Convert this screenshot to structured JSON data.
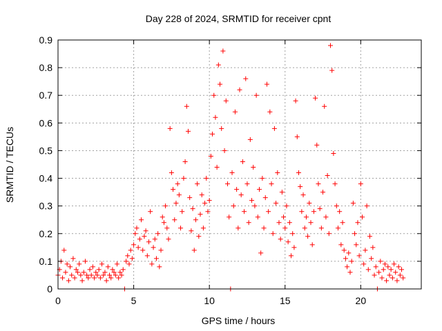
{
  "chart_data": {
    "type": "scatter",
    "title": "Day 228 of 2024, SRMTID for receiver cpnt",
    "xlabel": "GPS time / hours",
    "ylabel": "SRMTID / TECUs",
    "xlim": [
      0,
      24
    ],
    "ylim": [
      0,
      0.9
    ],
    "xticks": [
      0,
      5,
      10,
      15,
      20
    ],
    "xtick_labels": [
      "0",
      "5",
      "10",
      "15",
      "20"
    ],
    "yticks": [
      0,
      0.1,
      0.2,
      0.3,
      0.4,
      0.5,
      0.6,
      0.7,
      0.8,
      0.9
    ],
    "ytick_labels": [
      "0",
      "0.1",
      "0.2",
      "0.3",
      "0.4",
      "0.5",
      "0.6",
      "0.7",
      "0.8",
      "0.9"
    ],
    "grid": true,
    "marker": "plus",
    "color": "#ff0000",
    "series": [
      {
        "name": "SRMTID",
        "points": [
          [
            0.0,
            0.05
          ],
          [
            0.1,
            0.07
          ],
          [
            0.2,
            0.1
          ],
          [
            0.3,
            0.04
          ],
          [
            0.4,
            0.14
          ],
          [
            0.5,
            0.06
          ],
          [
            0.6,
            0.09
          ],
          [
            0.7,
            0.03
          ],
          [
            0.8,
            0.08
          ],
          [
            0.9,
            0.05
          ],
          [
            1.0,
            0.11
          ],
          [
            1.1,
            0.04
          ],
          [
            1.2,
            0.07
          ],
          [
            1.3,
            0.06
          ],
          [
            1.4,
            0.09
          ],
          [
            1.5,
            0.05
          ],
          [
            1.6,
            0.03
          ],
          [
            1.7,
            0.06
          ],
          [
            1.8,
            0.1
          ],
          [
            1.9,
            0.05
          ],
          [
            2.0,
            0.04
          ],
          [
            2.1,
            0.07
          ],
          [
            2.2,
            0.05
          ],
          [
            2.3,
            0.08
          ],
          [
            2.4,
            0.04
          ],
          [
            2.5,
            0.06
          ],
          [
            2.6,
            0.05
          ],
          [
            2.7,
            0.07
          ],
          [
            2.8,
            0.04
          ],
          [
            2.9,
            0.09
          ],
          [
            3.0,
            0.05
          ],
          [
            3.1,
            0.06
          ],
          [
            3.2,
            0.03
          ],
          [
            3.3,
            0.08
          ],
          [
            3.4,
            0.05
          ],
          [
            3.5,
            0.04
          ],
          [
            3.6,
            0.07
          ],
          [
            3.7,
            0.06
          ],
          [
            3.8,
            0.05
          ],
          [
            3.9,
            0.09
          ],
          [
            4.0,
            0.04
          ],
          [
            4.1,
            0.06
          ],
          [
            4.2,
            0.05
          ],
          [
            4.3,
            0.07
          ],
          [
            4.4,
            0.0
          ],
          [
            4.5,
            0.1
          ],
          [
            4.6,
            0.12
          ],
          [
            4.7,
            0.09
          ],
          [
            4.8,
            0.14
          ],
          [
            4.9,
            0.11
          ],
          [
            5.0,
            0.16
          ],
          [
            5.1,
            0.2
          ],
          [
            5.2,
            0.22
          ],
          [
            5.3,
            0.15
          ],
          [
            5.4,
            0.18
          ],
          [
            5.5,
            0.25
          ],
          [
            5.6,
            0.14
          ],
          [
            5.7,
            0.19
          ],
          [
            5.8,
            0.21
          ],
          [
            5.9,
            0.12
          ],
          [
            6.0,
            0.17
          ],
          [
            6.1,
            0.28
          ],
          [
            6.2,
            0.09
          ],
          [
            6.3,
            0.15
          ],
          [
            6.4,
            0.18
          ],
          [
            6.5,
            0.11
          ],
          [
            6.6,
            0.2
          ],
          [
            6.7,
            0.08
          ],
          [
            6.8,
            0.14
          ],
          [
            6.9,
            0.26
          ],
          [
            7.0,
            0.24
          ],
          [
            7.1,
            0.3
          ],
          [
            7.2,
            0.22
          ],
          [
            7.3,
            0.18
          ],
          [
            7.4,
            0.58
          ],
          [
            7.5,
            0.42
          ],
          [
            7.6,
            0.36
          ],
          [
            7.7,
            0.25
          ],
          [
            7.8,
            0.31
          ],
          [
            7.9,
            0.38
          ],
          [
            8.0,
            0.34
          ],
          [
            8.1,
            0.22
          ],
          [
            8.2,
            0.28
          ],
          [
            8.3,
            0.4
          ],
          [
            8.4,
            0.46
          ],
          [
            8.5,
            0.66
          ],
          [
            8.6,
            0.57
          ],
          [
            8.7,
            0.33
          ],
          [
            8.8,
            0.21
          ],
          [
            8.9,
            0.29
          ],
          [
            9.0,
            0.14
          ],
          [
            9.1,
            0.25
          ],
          [
            9.2,
            0.38
          ],
          [
            9.3,
            0.19
          ],
          [
            9.4,
            0.27
          ],
          [
            9.5,
            0.34
          ],
          [
            9.6,
            0.22
          ],
          [
            9.7,
            0.31
          ],
          [
            9.8,
            0.4
          ],
          [
            9.9,
            0.28
          ],
          [
            10.0,
            0.32
          ],
          [
            10.1,
            0.48
          ],
          [
            10.2,
            0.56
          ],
          [
            10.3,
            0.7
          ],
          [
            10.4,
            0.62
          ],
          [
            10.5,
            0.44
          ],
          [
            10.6,
            0.81
          ],
          [
            10.7,
            0.74
          ],
          [
            10.8,
            0.58
          ],
          [
            10.9,
            0.86
          ],
          [
            11.0,
            0.5
          ],
          [
            11.1,
            0.68
          ],
          [
            11.2,
            0.38
          ],
          [
            11.3,
            0.26
          ],
          [
            11.4,
            0.0
          ],
          [
            11.5,
            0.42
          ],
          [
            11.6,
            0.3
          ],
          [
            11.7,
            0.64
          ],
          [
            11.8,
            0.36
          ],
          [
            11.9,
            0.22
          ],
          [
            12.0,
            0.72
          ],
          [
            12.1,
            0.34
          ],
          [
            12.2,
            0.46
          ],
          [
            12.3,
            0.28
          ],
          [
            12.4,
            0.76
          ],
          [
            12.5,
            0.38
          ],
          [
            12.6,
            0.24
          ],
          [
            12.7,
            0.54
          ],
          [
            12.8,
            0.32
          ],
          [
            12.9,
            0.44
          ],
          [
            13.0,
            0.3
          ],
          [
            13.1,
            0.7
          ],
          [
            13.2,
            0.26
          ],
          [
            13.3,
            0.36
          ],
          [
            13.4,
            0.13
          ],
          [
            13.5,
            0.4
          ],
          [
            13.6,
            0.22
          ],
          [
            13.7,
            0.33
          ],
          [
            13.8,
            0.74
          ],
          [
            13.9,
            0.28
          ],
          [
            14.0,
            0.64
          ],
          [
            14.1,
            0.38
          ],
          [
            14.2,
            0.2
          ],
          [
            14.3,
            0.58
          ],
          [
            14.4,
            0.31
          ],
          [
            14.5,
            0.42
          ],
          [
            14.6,
            0.24
          ],
          [
            14.7,
            0.18
          ],
          [
            14.8,
            0.35
          ],
          [
            14.9,
            0.26
          ],
          [
            15.0,
            0.22
          ],
          [
            15.1,
            0.3
          ],
          [
            15.2,
            0.17
          ],
          [
            15.3,
            0.24
          ],
          [
            15.4,
            0.12
          ],
          [
            15.5,
            0.2
          ],
          [
            15.6,
            0.15
          ],
          [
            15.7,
            0.68
          ],
          [
            15.8,
            0.55
          ],
          [
            15.9,
            0.42
          ],
          [
            16.0,
            0.37
          ],
          [
            16.1,
            0.28
          ],
          [
            16.2,
            0.34
          ],
          [
            16.3,
            0.22
          ],
          [
            16.4,
            0.26
          ],
          [
            16.5,
            0.19
          ],
          [
            16.6,
            0.31
          ],
          [
            16.7,
            0.24
          ],
          [
            16.8,
            0.16
          ],
          [
            16.9,
            0.28
          ],
          [
            17.0,
            0.69
          ],
          [
            17.1,
            0.52
          ],
          [
            17.2,
            0.38
          ],
          [
            17.3,
            0.29
          ],
          [
            17.4,
            0.22
          ],
          [
            17.5,
            0.35
          ],
          [
            17.6,
            0.66
          ],
          [
            17.7,
            0.26
          ],
          [
            17.8,
            0.41
          ],
          [
            17.9,
            0.2
          ],
          [
            18.0,
            0.88
          ],
          [
            18.1,
            0.79
          ],
          [
            18.2,
            0.49
          ],
          [
            18.3,
            0.38
          ],
          [
            18.4,
            0.3
          ],
          [
            18.5,
            0.22
          ],
          [
            18.6,
            0.28
          ],
          [
            18.7,
            0.16
          ],
          [
            18.8,
            0.24
          ],
          [
            18.9,
            0.14
          ],
          [
            19.0,
            0.11
          ],
          [
            19.1,
            0.08
          ],
          [
            19.2,
            0.13
          ],
          [
            19.3,
            0.06
          ],
          [
            19.4,
            0.1
          ],
          [
            19.5,
            0.31
          ],
          [
            19.6,
            0.2
          ],
          [
            19.7,
            0.16
          ],
          [
            19.8,
            0.24
          ],
          [
            19.9,
            0.12
          ],
          [
            20.0,
            0.38
          ],
          [
            20.1,
            0.26
          ],
          [
            20.2,
            0.09
          ],
          [
            20.3,
            0.14
          ],
          [
            20.4,
            0.3
          ],
          [
            20.5,
            0.07
          ],
          [
            20.6,
            0.19
          ],
          [
            20.7,
            0.11
          ],
          [
            20.8,
            0.15
          ],
          [
            20.9,
            0.05
          ],
          [
            21.0,
            0.08
          ],
          [
            21.1,
            0.0
          ],
          [
            21.2,
            0.06
          ],
          [
            21.3,
            0.1
          ],
          [
            21.4,
            0.04
          ],
          [
            21.5,
            0.07
          ],
          [
            21.6,
            0.09
          ],
          [
            21.7,
            0.03
          ],
          [
            21.8,
            0.08
          ],
          [
            21.9,
            0.05
          ],
          [
            22.0,
            0.07
          ],
          [
            22.1,
            0.04
          ],
          [
            22.2,
            0.09
          ],
          [
            22.3,
            0.06
          ],
          [
            22.4,
            0.03
          ],
          [
            22.5,
            0.08
          ],
          [
            22.6,
            0.05
          ],
          [
            22.7,
            0.07
          ],
          [
            22.8,
            0.04
          ]
        ]
      }
    ]
  }
}
